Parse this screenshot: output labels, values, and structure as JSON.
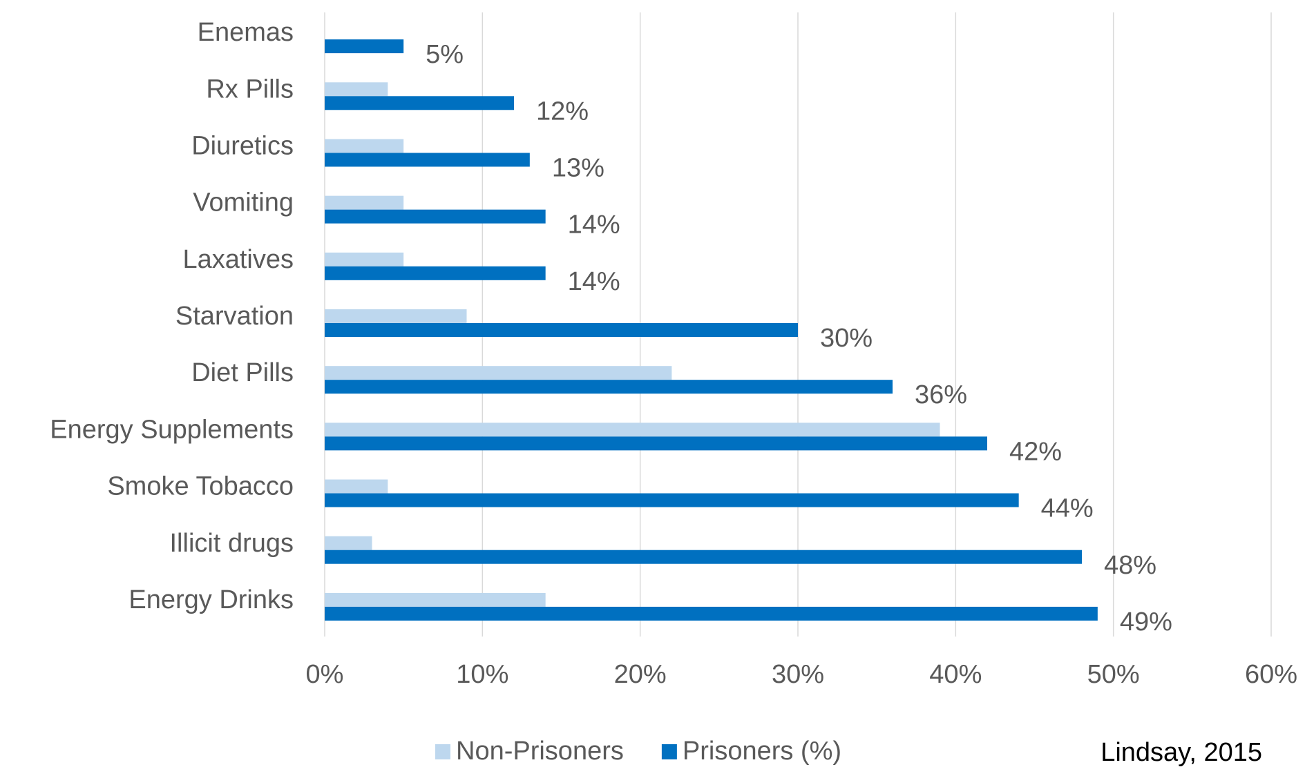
{
  "chart_data": {
    "type": "bar",
    "orientation": "horizontal",
    "categories": [
      "Enemas",
      "Rx Pills",
      "Diuretics",
      "Vomiting",
      "Laxatives",
      "Starvation",
      "Diet Pills",
      "Energy Supplements",
      "Smoke Tobacco",
      "Illicit drugs",
      "Energy Drinks"
    ],
    "series": [
      {
        "name": "Non-Prisoners",
        "color": "#bdd7ee",
        "values": [
          0,
          4,
          5,
          5,
          5,
          9,
          22,
          39,
          4,
          3,
          14
        ]
      },
      {
        "name": "Prisoners (%)",
        "color": "#0070c0",
        "values": [
          5,
          12,
          13,
          14,
          14,
          30,
          36,
          42,
          44,
          48,
          49
        ],
        "value_labels": [
          "5%",
          "12%",
          "13%",
          "14%",
          "14%",
          "30%",
          "36%",
          "42%",
          "44%",
          "48%",
          "49%"
        ]
      }
    ],
    "xlim": [
      0,
      60
    ],
    "xticks": [
      {
        "value": 0,
        "label": "0%"
      },
      {
        "value": 10,
        "label": "10%"
      },
      {
        "value": 20,
        "label": "20%"
      },
      {
        "value": 30,
        "label": "30%"
      },
      {
        "value": 40,
        "label": "40%"
      },
      {
        "value": 50,
        "label": "50%"
      },
      {
        "value": 60,
        "label": "60%"
      }
    ],
    "grid": true,
    "legend": "bottom",
    "source": "Lindsay, 2015"
  }
}
